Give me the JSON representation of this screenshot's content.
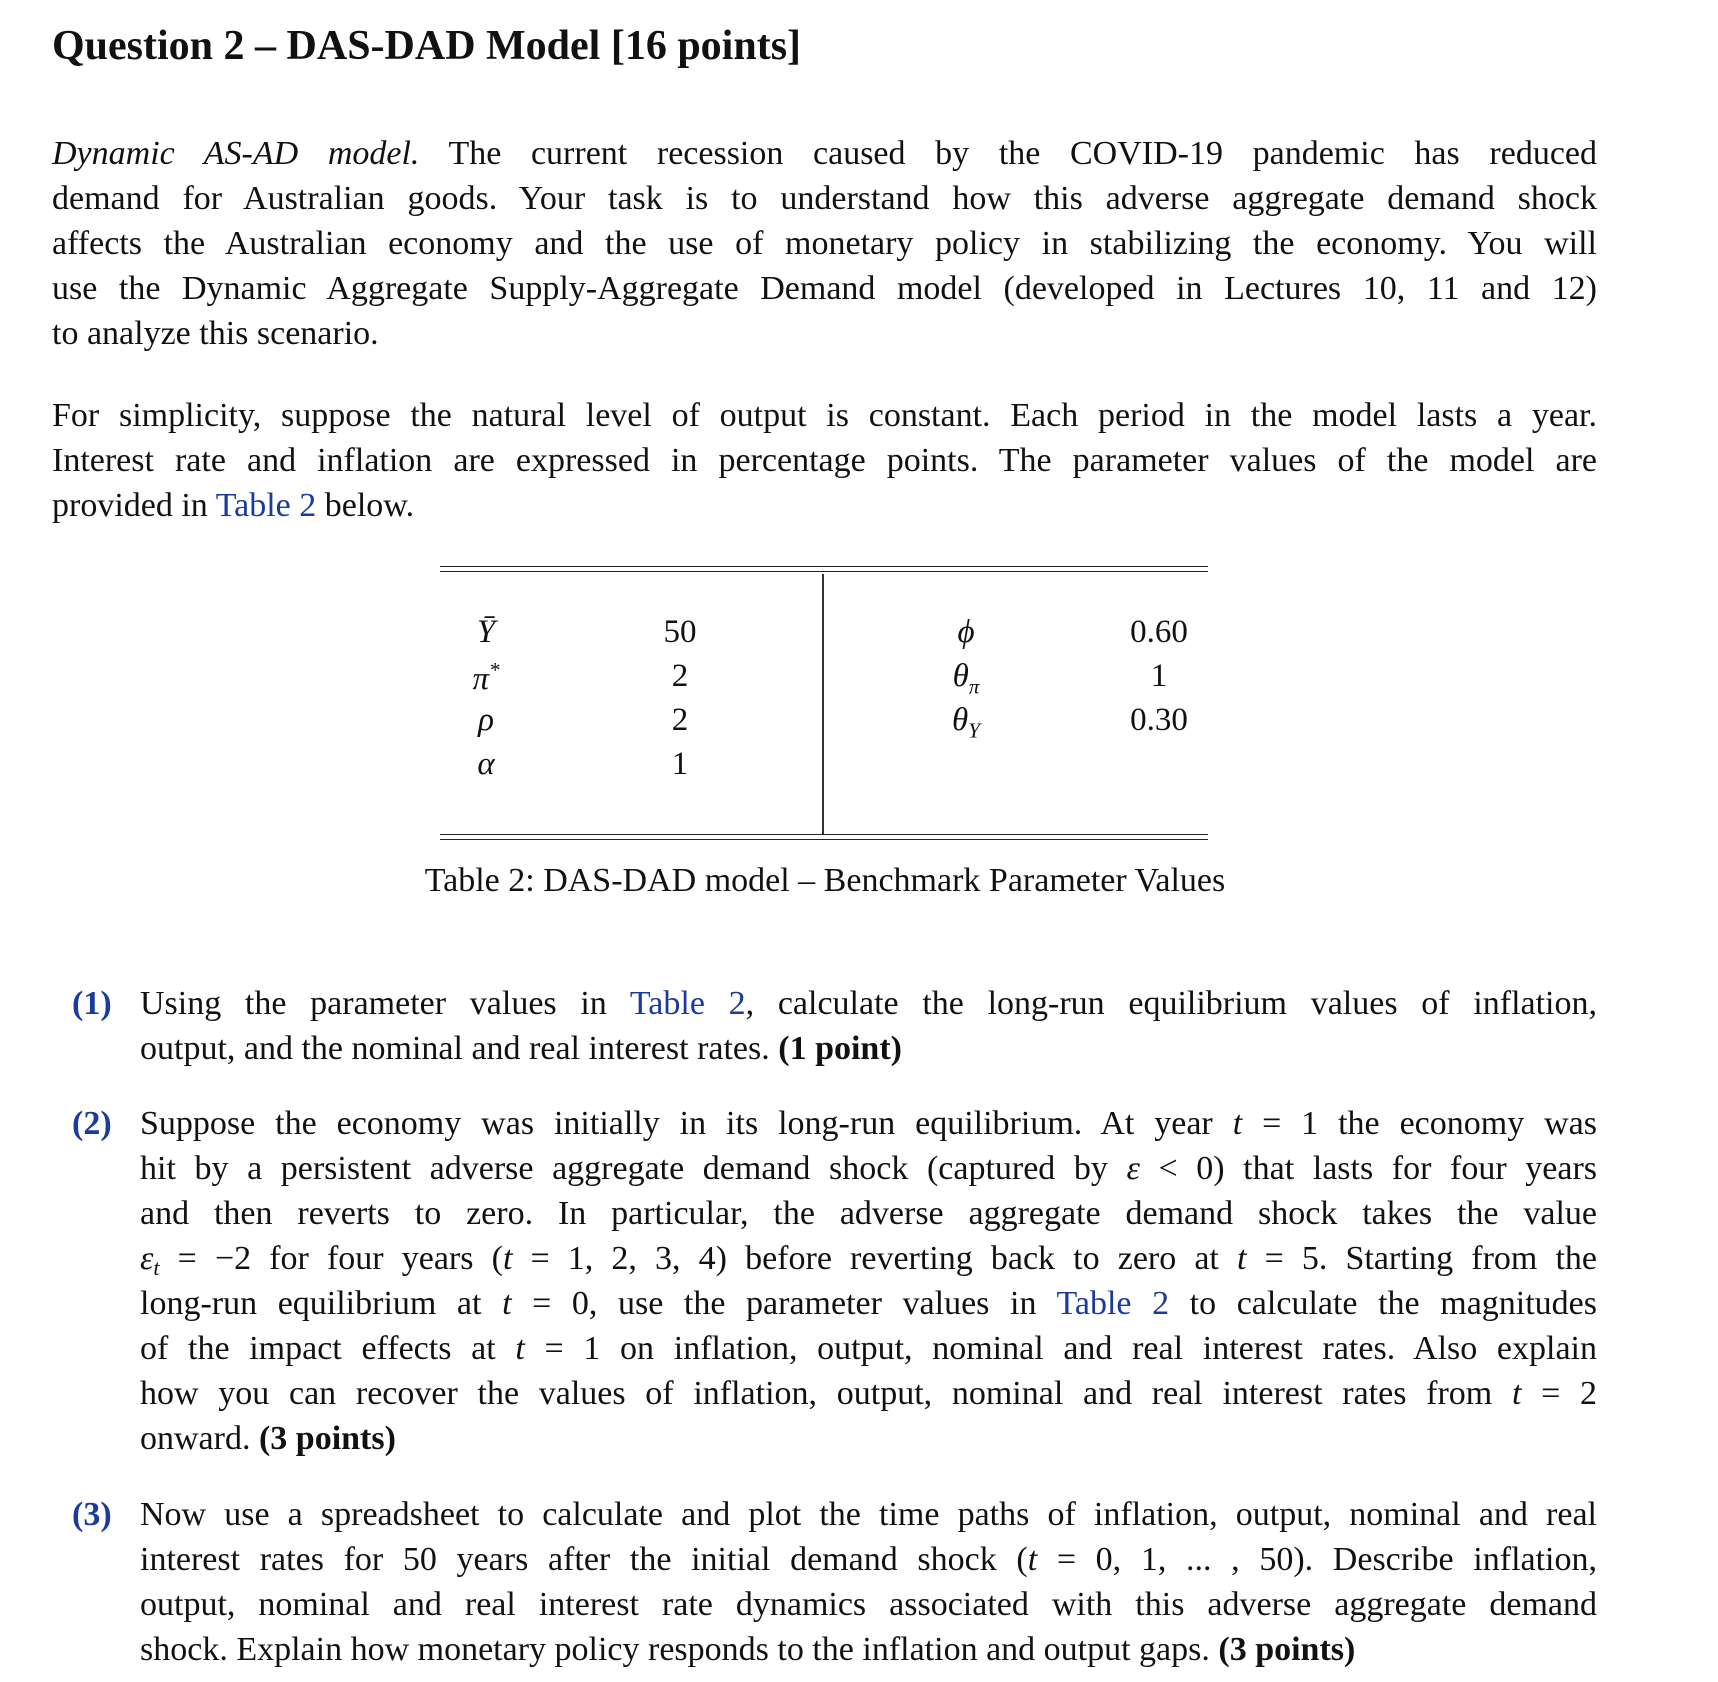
{
  "title": "Question 2 – DAS-DAD Model [16 points]",
  "paragraphs": [
    [
      [
        [
          "i",
          "Dynamic AS-AD model."
        ],
        [
          "n",
          "  The current recession caused by the COVID-19 pandemic has reduced"
        ]
      ],
      [
        [
          "n",
          "demand for Australian goods. Your task is to understand how this adverse aggregate demand shock"
        ]
      ],
      [
        [
          "n",
          "affects the Australian economy and the use of monetary policy in stabilizing the economy. You will"
        ]
      ],
      [
        [
          "n",
          "use the Dynamic Aggregate Supply-Aggregate Demand model (developed in Lectures 10, 11 and 12)"
        ]
      ],
      [
        [
          "n",
          "to analyze this scenario."
        ]
      ]
    ],
    [
      [
        [
          "n",
          "For simplicity, suppose the natural level of output is constant. Each period in the model lasts a year."
        ]
      ],
      [
        [
          "n",
          "Interest rate and inflation are expressed in percentage points. The parameter values of the model are"
        ]
      ],
      [
        [
          "n",
          "provided in "
        ],
        [
          "a",
          "Table 2"
        ],
        [
          "n",
          " below."
        ]
      ]
    ]
  ],
  "table": {
    "left": [
      {
        "symbol": "Ȳ",
        "sub": "",
        "sup": "",
        "value": "50"
      },
      {
        "symbol": "π",
        "sub": "",
        "sup": "*",
        "value": "2"
      },
      {
        "symbol": "ρ",
        "sub": "",
        "sup": "",
        "value": "2"
      },
      {
        "symbol": "α",
        "sub": "",
        "sup": "",
        "value": "1"
      }
    ],
    "right": [
      {
        "symbol": "ϕ",
        "sub": "",
        "sup": "",
        "value": "0.60"
      },
      {
        "symbol": "θ",
        "sub": "π",
        "sup": "",
        "value": "1"
      },
      {
        "symbol": "θ",
        "sub": "Y",
        "sup": "",
        "value": "0.30"
      }
    ],
    "caption": "Table 2: DAS-DAD model – Benchmark Parameter Values"
  },
  "items": [
    {
      "num": "(1)",
      "lines": [
        [
          [
            "n",
            "Using the parameter values in "
          ],
          [
            "a",
            "Table 2"
          ],
          [
            "n",
            ", calculate the long-run equilibrium values of inflation,"
          ]
        ],
        [
          [
            "n",
            "output, and the nominal and real interest rates. "
          ],
          [
            "b",
            "(1 point)"
          ]
        ]
      ]
    },
    {
      "num": "(2)",
      "lines": [
        [
          [
            "n",
            "Suppose the economy was initially in its long-run equilibrium. At year "
          ],
          [
            "m",
            "t"
          ],
          [
            "n",
            " = 1 the economy was"
          ]
        ],
        [
          [
            "n",
            "hit by a persistent adverse aggregate demand shock (captured by "
          ],
          [
            "m",
            "ε"
          ],
          [
            "n",
            " < 0) that lasts for four years"
          ]
        ],
        [
          [
            "n",
            "and then reverts to zero. In particular, the adverse aggregate demand shock takes the value"
          ]
        ],
        [
          [
            "m",
            "ε"
          ],
          [
            "s",
            "t"
          ],
          [
            "n",
            " = −2 for four years ("
          ],
          [
            "m",
            "t"
          ],
          [
            "n",
            " = 1, 2, 3, 4) before reverting back to zero at "
          ],
          [
            "m",
            "t"
          ],
          [
            "n",
            " = 5. Starting from the"
          ]
        ],
        [
          [
            "n",
            "long-run equilibrium at "
          ],
          [
            "m",
            "t"
          ],
          [
            "n",
            " = 0, use the parameter values in "
          ],
          [
            "a",
            "Table 2"
          ],
          [
            "n",
            " to calculate the magnitudes"
          ]
        ],
        [
          [
            "n",
            "of the impact effects at "
          ],
          [
            "m",
            "t"
          ],
          [
            "n",
            " = 1 on inflation, output, nominal and real interest rates. Also explain"
          ]
        ],
        [
          [
            "n",
            "how you can recover the values of inflation, output, nominal and real interest rates from "
          ],
          [
            "m",
            "t"
          ],
          [
            "n",
            " = 2"
          ]
        ],
        [
          [
            "n",
            "onward. "
          ],
          [
            "b",
            "(3 points)"
          ]
        ]
      ]
    },
    {
      "num": "(3)",
      "lines": [
        [
          [
            "n",
            "Now use a spreadsheet to calculate and plot the time paths of inflation, output, nominal and real"
          ]
        ],
        [
          [
            "n",
            "interest rates for 50 years after the initial demand shock ("
          ],
          [
            "m",
            "t"
          ],
          [
            "n",
            " = 0, 1, ... , 50). Describe inflation,"
          ]
        ],
        [
          [
            "n",
            "output, nominal and real interest rate dynamics associated with this adverse aggregate demand"
          ]
        ],
        [
          [
            "n",
            "shock. Explain how monetary policy responds to the inflation and output gaps. "
          ],
          [
            "b",
            "(3 points)"
          ]
        ]
      ]
    }
  ],
  "colors": {
    "link": "#1a3b9c",
    "text": "#111111"
  }
}
